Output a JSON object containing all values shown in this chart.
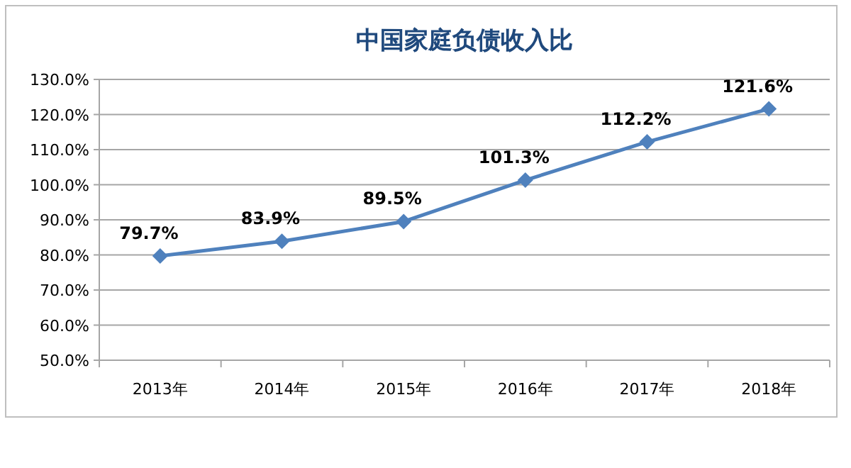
{
  "chart_data": {
    "type": "line",
    "title": "中国家庭负债收入比",
    "categories": [
      "2013年",
      "2014年",
      "2015年",
      "2016年",
      "2017年",
      "2018年"
    ],
    "series": [
      {
        "color": "#4f81bd",
        "values": [
          79.7,
          83.9,
          89.5,
          101.3,
          112.2,
          121.6
        ],
        "value_labels": [
          "79.7%",
          "83.9%",
          "89.5%",
          "101.3%",
          "112.2%",
          "121.6%"
        ]
      }
    ],
    "ylim": [
      50,
      130
    ],
    "yticks": [
      {
        "value": 50,
        "label": "50.0%"
      },
      {
        "value": 60,
        "label": "60.0%"
      },
      {
        "value": 70,
        "label": "70.0%"
      },
      {
        "value": 80,
        "label": "80.0%"
      },
      {
        "value": 90,
        "label": "90.0%"
      },
      {
        "value": 100,
        "label": "100.0%"
      },
      {
        "value": 110,
        "label": "110.0%"
      },
      {
        "value": 120,
        "label": "120.0%"
      },
      {
        "value": 130,
        "label": "130.0%"
      }
    ],
    "grid": "y",
    "marker": "diamond",
    "line_style": "solid"
  }
}
